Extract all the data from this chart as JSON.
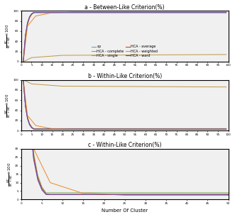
{
  "title_a": "a - Between-Like Criterion(%)",
  "title_b": "b - Within-Like Criterion(%)",
  "title_c": "c - Within-Like Criterion(%)",
  "xlabel": "Number Of Cluster",
  "legend_labels": [
    "ap",
    "HCA - complete",
    "HCA - single",
    "HCA - average",
    "HCA - weighted",
    "HCA - ward"
  ],
  "colors": {
    "ap": "#7799bb",
    "HCA - complete": "#77aa55",
    "HCA - single": "#bb9944",
    "HCA - average": "#cc4422",
    "HCA - weighted": "#ee8822",
    "HCA - ward": "#6644aa"
  },
  "bg_color": "#f0f0f0",
  "xlim_ab": [
    0,
    100
  ],
  "xlim_c": [
    0,
    50
  ],
  "ylim_a": [
    0,
    100
  ],
  "ylim_b": [
    0,
    100
  ],
  "ylim_c": [
    0,
    30
  ]
}
